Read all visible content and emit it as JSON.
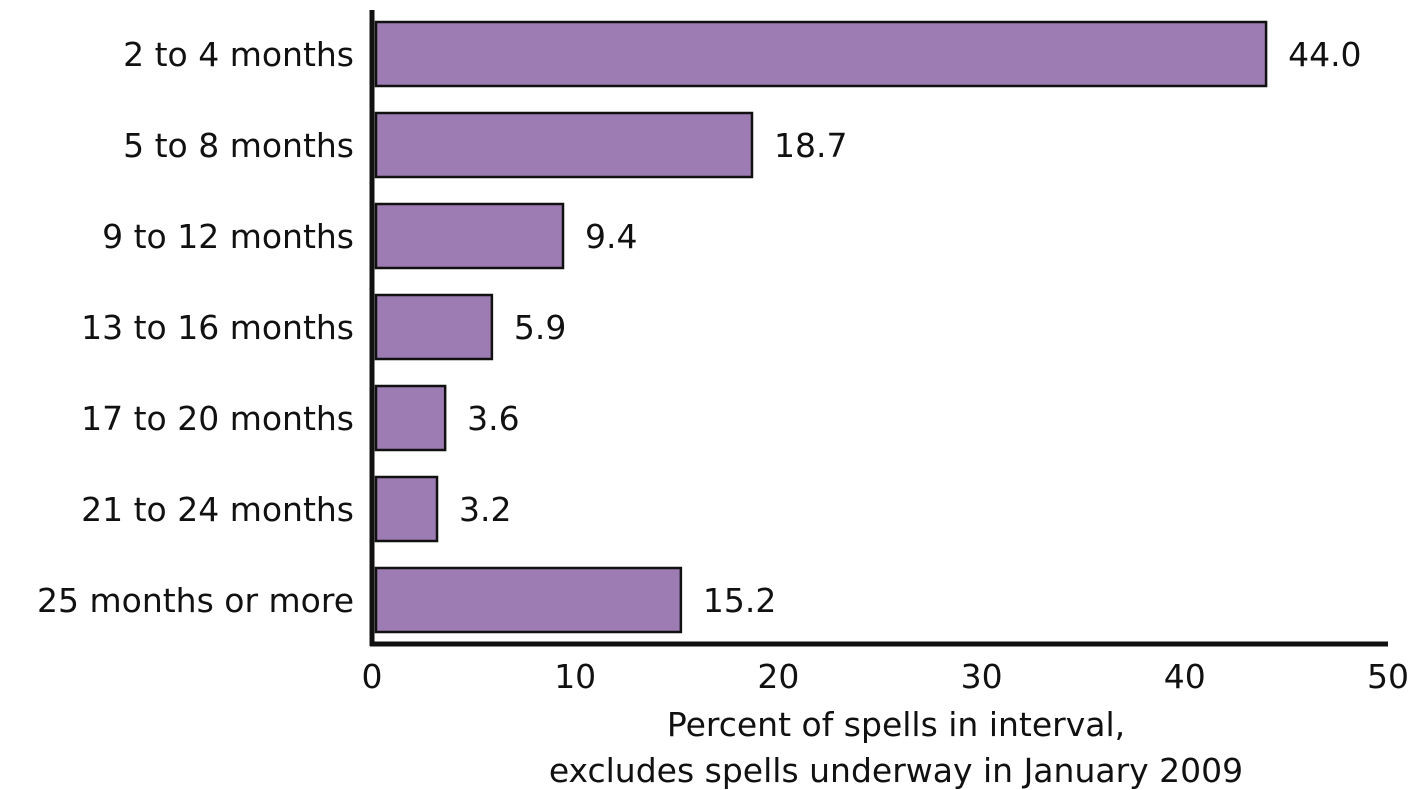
{
  "chart_data": {
    "type": "bar",
    "orientation": "horizontal",
    "categories": [
      "2 to 4 months",
      "5 to 8 months",
      "9 to 12 months",
      "13 to 16 months",
      "17 to 20 months",
      "21 to 24 months",
      "25 months or more"
    ],
    "values": [
      44.0,
      18.7,
      9.4,
      5.9,
      3.6,
      3.2,
      15.2
    ],
    "value_labels": [
      "44.0",
      "18.7",
      "9.4",
      "5.9",
      "3.6",
      "3.2",
      "15.2"
    ],
    "xlabel_lines": [
      "Percent of spells in interval,",
      "excludes spells underway in January 2009"
    ],
    "xlim": [
      0,
      50
    ],
    "xticks": [
      0,
      10,
      20,
      30,
      40,
      50
    ],
    "grid": false,
    "legend": "none",
    "colors": {
      "bar_fill": "#9d7cb4",
      "bar_stroke": "#111111",
      "axis": "#111111"
    }
  }
}
